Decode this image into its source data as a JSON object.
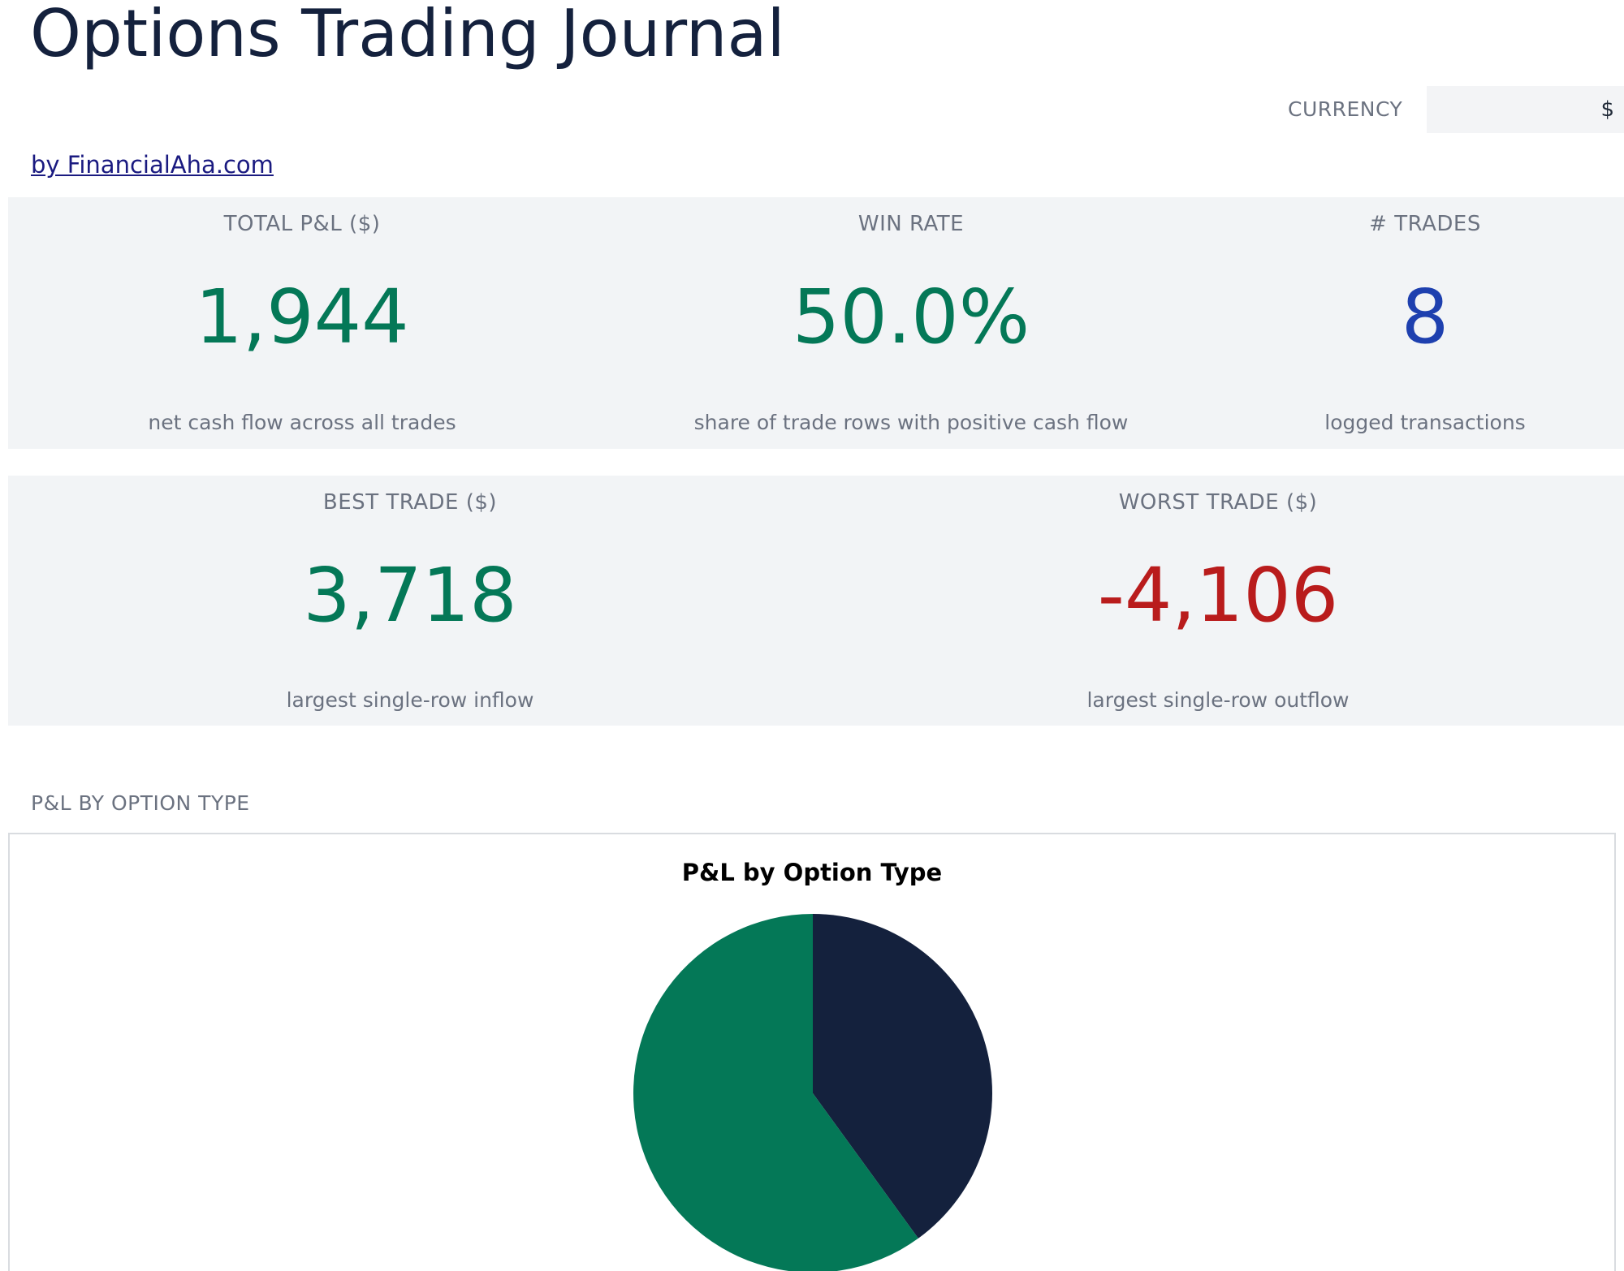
{
  "header": {
    "title": "Options Trading Journal",
    "byline": "by FinancialAha.com",
    "currency_label": "CURRENCY",
    "currency_value": "$"
  },
  "kpis": {
    "total_pl": {
      "label": "TOTAL P&L ($)",
      "value": "1,944",
      "note": "net cash flow across all trades",
      "color": "#047857"
    },
    "win_rate": {
      "label": "WIN RATE",
      "value": "50.0%",
      "note": "share of trade rows with positive cash flow",
      "color": "#047857"
    },
    "trades": {
      "label": "# TRADES",
      "value": "8",
      "note": "logged transactions",
      "color": "#1e40af"
    },
    "best_trade": {
      "label": "BEST TRADE ($)",
      "value": "3,718",
      "note": "largest single-row inflow",
      "color": "#047857"
    },
    "worst_trade": {
      "label": "WORST TRADE ($)",
      "value": "-4,106",
      "note": "largest single-row outflow",
      "color": "#b91c1c"
    }
  },
  "section": {
    "chart_label": "P&L BY OPTION TYPE"
  },
  "chart_data": {
    "type": "pie",
    "title": "P&L by Option Type",
    "slices": [
      {
        "value": 40,
        "color": "#14213d"
      },
      {
        "value": 60,
        "color": "#047857"
      }
    ]
  }
}
